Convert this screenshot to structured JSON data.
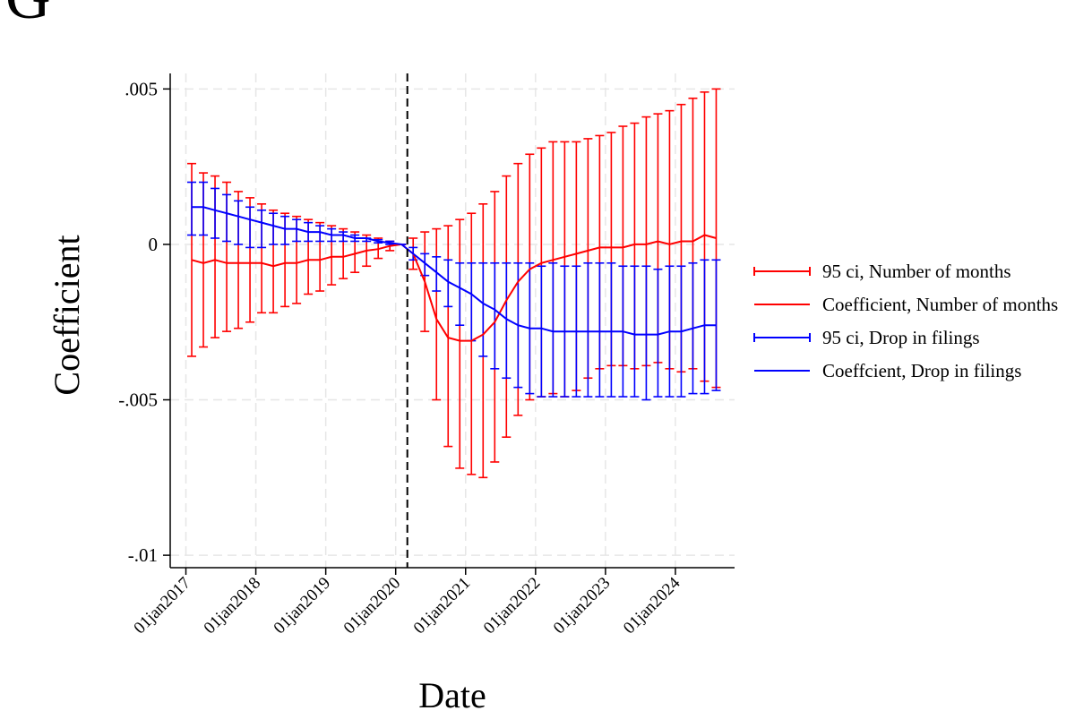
{
  "panel_label": "G",
  "chart_data": {
    "type": "errorbar-line",
    "xlabel": "Date",
    "ylabel": "Coefficient",
    "x": [
      "2017-02-01",
      "2017-04-01",
      "2017-06-01",
      "2017-08-01",
      "2017-10-01",
      "2017-12-01",
      "2018-02-01",
      "2018-04-01",
      "2018-06-01",
      "2018-08-01",
      "2018-10-01",
      "2018-12-01",
      "2019-02-01",
      "2019-04-01",
      "2019-06-01",
      "2019-08-01",
      "2019-10-01",
      "2019-12-01",
      "2020-02-01",
      "2020-04-01",
      "2020-06-01",
      "2020-08-01",
      "2020-10-01",
      "2020-12-01",
      "2021-02-01",
      "2021-04-01",
      "2021-06-01",
      "2021-08-01",
      "2021-10-01",
      "2021-12-01",
      "2022-02-01",
      "2022-04-01",
      "2022-06-01",
      "2022-08-01",
      "2022-10-01",
      "2022-12-01",
      "2023-02-01",
      "2023-04-01",
      "2023-06-01",
      "2023-08-01",
      "2023-10-01",
      "2023-12-01",
      "2024-02-01",
      "2024-04-01",
      "2024-06-01",
      "2024-08-01"
    ],
    "xlim": [
      "2016-10-01",
      "2024-11-01"
    ],
    "xticks": [
      {
        "value": "2017-01-01",
        "label": "01jan2017"
      },
      {
        "value": "2018-01-01",
        "label": "01jan2018"
      },
      {
        "value": "2019-01-01",
        "label": "01jan2019"
      },
      {
        "value": "2020-01-01",
        "label": "01jan2020"
      },
      {
        "value": "2021-01-01",
        "label": "01jan2021"
      },
      {
        "value": "2022-01-01",
        "label": "01jan2022"
      },
      {
        "value": "2023-01-01",
        "label": "01jan2023"
      },
      {
        "value": "2024-01-01",
        "label": "01jan2024"
      }
    ],
    "ylim": [
      -0.0104,
      0.0055
    ],
    "yticks": [
      {
        "value": -0.01,
        "label": "-.01"
      },
      {
        "value": -0.005,
        "label": "-.005"
      },
      0,
      {
        "value": 0.005,
        "label": ".005"
      }
    ],
    "grid": true,
    "event_line": "2020-03-01",
    "series": [
      {
        "name": "Coefficient, Number of months",
        "ci_name": "95 ci, Number of months",
        "color": "#ff0000",
        "values": [
          -0.0005,
          -0.0006,
          -0.0005,
          -0.0006,
          -0.0006,
          -0.0006,
          -0.0006,
          -0.0007,
          -0.0006,
          -0.0006,
          -0.0005,
          -0.0005,
          -0.0004,
          -0.0004,
          -0.0003,
          -0.0002,
          -0.00015,
          -5e-05,
          0,
          -0.0003,
          -0.0012,
          -0.0024,
          -0.003,
          -0.0031,
          -0.0031,
          -0.0029,
          -0.0025,
          -0.0018,
          -0.0012,
          -0.0008,
          -0.0006,
          -0.0005,
          -0.0004,
          -0.0003,
          -0.0002,
          -0.0001,
          -0.0001,
          -0.0001,
          0,
          0,
          0.0001,
          0,
          0.0001,
          0.0001,
          0.0003,
          0.0002
        ],
        "upper": [
          0.0026,
          0.0023,
          0.0022,
          0.002,
          0.0017,
          0.0015,
          0.0013,
          0.0011,
          0.001,
          0.0009,
          0.0008,
          0.0007,
          0.0006,
          0.0005,
          0.0004,
          0.0003,
          0.0002,
          0.0001,
          0,
          0.0002,
          0.0004,
          0.0005,
          0.0006,
          0.0008,
          0.001,
          0.0013,
          0.0017,
          0.0022,
          0.0026,
          0.0029,
          0.0031,
          0.0033,
          0.0033,
          0.0033,
          0.0034,
          0.0035,
          0.0036,
          0.0038,
          0.0039,
          0.0041,
          0.0042,
          0.0043,
          0.0045,
          0.0047,
          0.0049,
          0.005
        ],
        "lower": [
          -0.0036,
          -0.0033,
          -0.003,
          -0.0028,
          -0.0027,
          -0.0025,
          -0.0022,
          -0.0022,
          -0.002,
          -0.0019,
          -0.0016,
          -0.0015,
          -0.0013,
          -0.0011,
          -0.0009,
          -0.0007,
          -0.00045,
          -0.0002,
          0,
          -0.0008,
          -0.0028,
          -0.005,
          -0.0065,
          -0.0072,
          -0.0074,
          -0.0075,
          -0.007,
          -0.0062,
          -0.0055,
          -0.005,
          -0.0049,
          -0.0048,
          -0.0049,
          -0.0047,
          -0.0043,
          -0.004,
          -0.0039,
          -0.0039,
          -0.004,
          -0.0039,
          -0.0038,
          -0.004,
          -0.0041,
          -0.004,
          -0.0044,
          -0.0046
        ]
      },
      {
        "name": "Coeffcient, Drop in filings",
        "ci_name": "95 ci, Drop in filings",
        "color": "#0000ff",
        "values": [
          0.0012,
          0.0012,
          0.0011,
          0.001,
          0.0009,
          0.0008,
          0.0007,
          0.0006,
          0.0005,
          0.0005,
          0.0004,
          0.0004,
          0.0003,
          0.0003,
          0.0002,
          0.0002,
          0.0001,
          5e-05,
          0,
          -0.0003,
          -0.0006,
          -0.0009,
          -0.0012,
          -0.0014,
          -0.0016,
          -0.0019,
          -0.0021,
          -0.0024,
          -0.0026,
          -0.0027,
          -0.0027,
          -0.0028,
          -0.0028,
          -0.0028,
          -0.0028,
          -0.0028,
          -0.0028,
          -0.0028,
          -0.0029,
          -0.0029,
          -0.0029,
          -0.0028,
          -0.0028,
          -0.0027,
          -0.0026,
          -0.0026
        ],
        "upper": [
          0.002,
          0.002,
          0.0018,
          0.0016,
          0.0014,
          0.0012,
          0.0011,
          0.001,
          0.0009,
          0.0008,
          0.0007,
          0.0006,
          0.0005,
          0.0004,
          0.0003,
          0.0002,
          0.00015,
          0.0001,
          0,
          -0.0001,
          -0.0003,
          -0.0004,
          -0.0005,
          -0.0006,
          -0.0006,
          -0.0006,
          -0.0006,
          -0.0006,
          -0.0006,
          -0.0006,
          -0.0007,
          -0.0006,
          -0.0007,
          -0.0007,
          -0.0006,
          -0.0006,
          -0.0006,
          -0.0007,
          -0.0007,
          -0.0007,
          -0.0008,
          -0.0007,
          -0.0007,
          -0.0006,
          -0.0005,
          -0.0005
        ],
        "lower": [
          0.0003,
          0.0003,
          0.0002,
          0.0001,
          0,
          -0.0001,
          -0.0001,
          0,
          0,
          0.0001,
          0.0001,
          0.0001,
          0.0001,
          0.0001,
          0.0001,
          0.0001,
          5e-05,
          0,
          0,
          -0.0005,
          -0.001,
          -0.0015,
          -0.002,
          -0.0026,
          -0.0031,
          -0.0036,
          -0.004,
          -0.0043,
          -0.0046,
          -0.0048,
          -0.0049,
          -0.0049,
          -0.0049,
          -0.0049,
          -0.0049,
          -0.0049,
          -0.0049,
          -0.0049,
          -0.0049,
          -0.005,
          -0.0049,
          -0.0049,
          -0.0049,
          -0.0048,
          -0.0048,
          -0.0047
        ]
      }
    ]
  }
}
